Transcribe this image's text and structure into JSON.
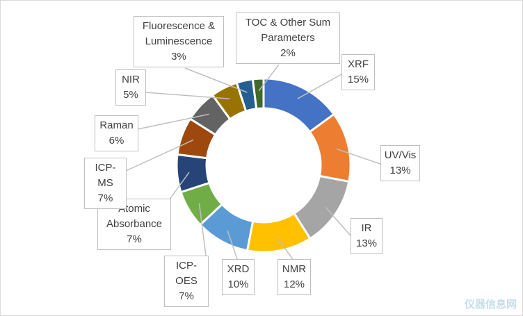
{
  "chart_data": {
    "type": "pie",
    "subtype": "donut",
    "title": "",
    "categories": [
      "XRF",
      "UV/Vis",
      "IR",
      "NMR",
      "XRD",
      "ICP-OES",
      "Atomic Absorbance",
      "ICP-MS",
      "Raman",
      "NIR",
      "Fluorescence & Luminescence",
      "TOC & Other Sum Parameters"
    ],
    "values": [
      15,
      13,
      13,
      12,
      10,
      7,
      7,
      7,
      6,
      5,
      3,
      2
    ],
    "labels": [
      {
        "name": "XRF",
        "pct": "15%"
      },
      {
        "name": "UV/Vis",
        "pct": "13%"
      },
      {
        "name": "IR",
        "pct": "13%"
      },
      {
        "name": "NMR",
        "pct": "12%"
      },
      {
        "name": "XRD",
        "pct": "10%"
      },
      {
        "name": "ICP-OES",
        "pct": "7%"
      },
      {
        "name": "Atomic Absorbance",
        "pct": "7%"
      },
      {
        "name": "ICP-MS",
        "pct": "7%"
      },
      {
        "name": "Raman",
        "pct": "6%"
      },
      {
        "name": "NIR",
        "pct": "5%"
      },
      {
        "name": "Fluorescence & Luminescence",
        "pct": "3%"
      },
      {
        "name": "TOC & Other Sum Parameters",
        "pct": "2%"
      }
    ],
    "colors": [
      "#4472C4",
      "#ED7D31",
      "#A5A5A5",
      "#FFC000",
      "#5B9BD5",
      "#70AD47",
      "#264478",
      "#9E480E",
      "#636363",
      "#997300",
      "#255E91",
      "#43682B"
    ],
    "legend": "none"
  },
  "watermark": "仪器信息网"
}
